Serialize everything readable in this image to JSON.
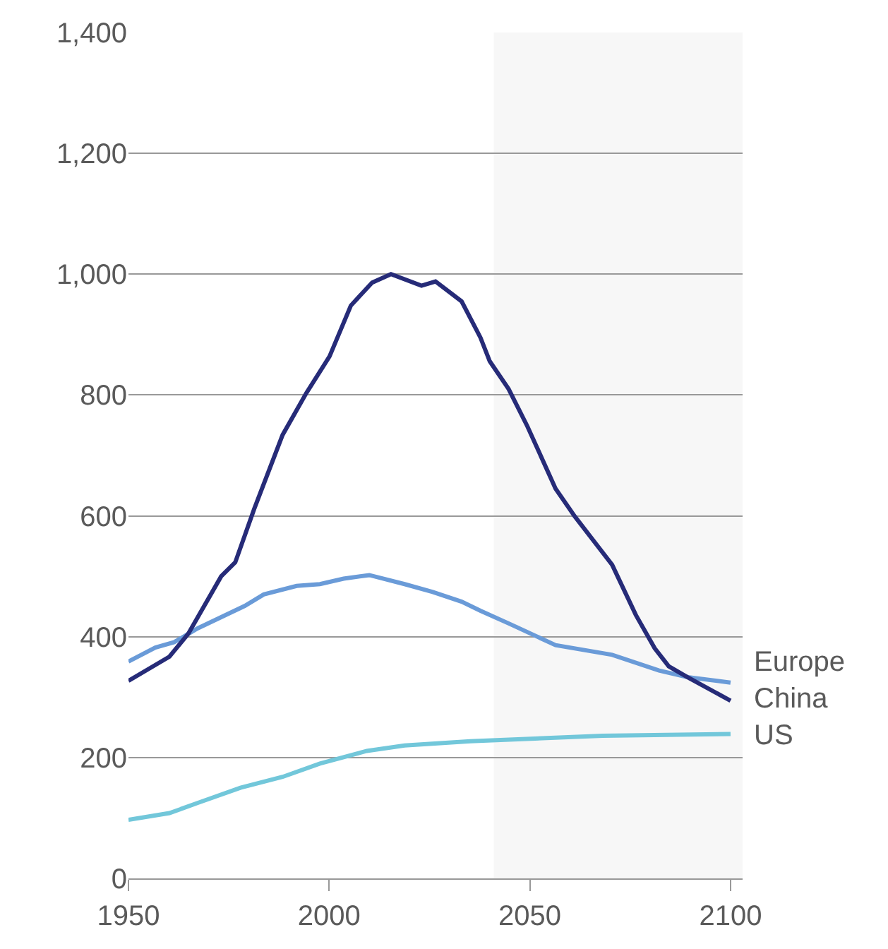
{
  "chart_data": {
    "type": "line",
    "series": [
      {
        "name": "Europe",
        "color": "#6a9bd8",
        "x": [
          1950,
          1956.7,
          1961.4,
          1967.3,
          1979,
          1983.7,
          1991.9,
          1997.7,
          2003.6,
          2010,
          2018.8,
          2025.8,
          2033,
          2037.7,
          2044.7,
          2047,
          2056.4,
          2070.5,
          2082.2,
          2089.3,
          2100
        ],
        "values": [
          359,
          382,
          391,
          414,
          451,
          470,
          484,
          487,
          496,
          502,
          487,
          474,
          458,
          443,
          422,
          415,
          386,
          370,
          344,
          333,
          324
        ]
      },
      {
        "name": "China",
        "color": "#262b78",
        "x": [
          1950,
          1960.2,
          1964.9,
          1973.1,
          1976.6,
          1981.3,
          1988.4,
          1994.3,
          2000.1,
          2005.4,
          2010.7,
          2015.4,
          2023,
          2026.5,
          2033,
          2037.7,
          2040,
          2044.7,
          2049.4,
          2056.4,
          2061.2,
          2070.5,
          2076.4,
          2081.1,
          2084.6,
          2089.3,
          2100
        ],
        "values": [
          327,
          367,
          405,
          500,
          523,
          611,
          734,
          803,
          864,
          948,
          986,
          1000,
          981,
          988,
          955,
          895,
          856,
          810,
          748,
          645,
          599,
          519,
          436,
          381,
          351,
          333,
          294
        ]
      },
      {
        "name": "US",
        "color": "#72c7da",
        "x": [
          1950,
          1960.2,
          1967.3,
          1977.9,
          1988.4,
          1997.7,
          2009.4,
          2018.8,
          2035.2,
          2068.1,
          2100
        ],
        "values": [
          97,
          108,
          125,
          150,
          168,
          190,
          211,
          220,
          227,
          236,
          239
        ]
      }
    ],
    "xlim": [
      1950,
      2103
    ],
    "xticks": [
      1950,
      2000,
      2050,
      2100
    ],
    "ylim": [
      0,
      1400
    ],
    "yticks": [
      {
        "value": 0,
        "label": "0"
      },
      {
        "value": 200,
        "label": "200"
      },
      {
        "value": 400,
        "label": "400"
      },
      {
        "value": 600,
        "label": "600"
      },
      {
        "value": 800,
        "label": "800"
      },
      {
        "value": 1000,
        "label": "1,000"
      },
      {
        "value": 1200,
        "label": "1,200"
      },
      {
        "value": 1400,
        "label": "1,400"
      }
    ],
    "bands": [
      {
        "axis": "x",
        "from": 2041,
        "to": 2103,
        "color": "#f7f7f7"
      }
    ],
    "grid": "y",
    "legend": false,
    "marker": "none",
    "line_style": "solid"
  }
}
